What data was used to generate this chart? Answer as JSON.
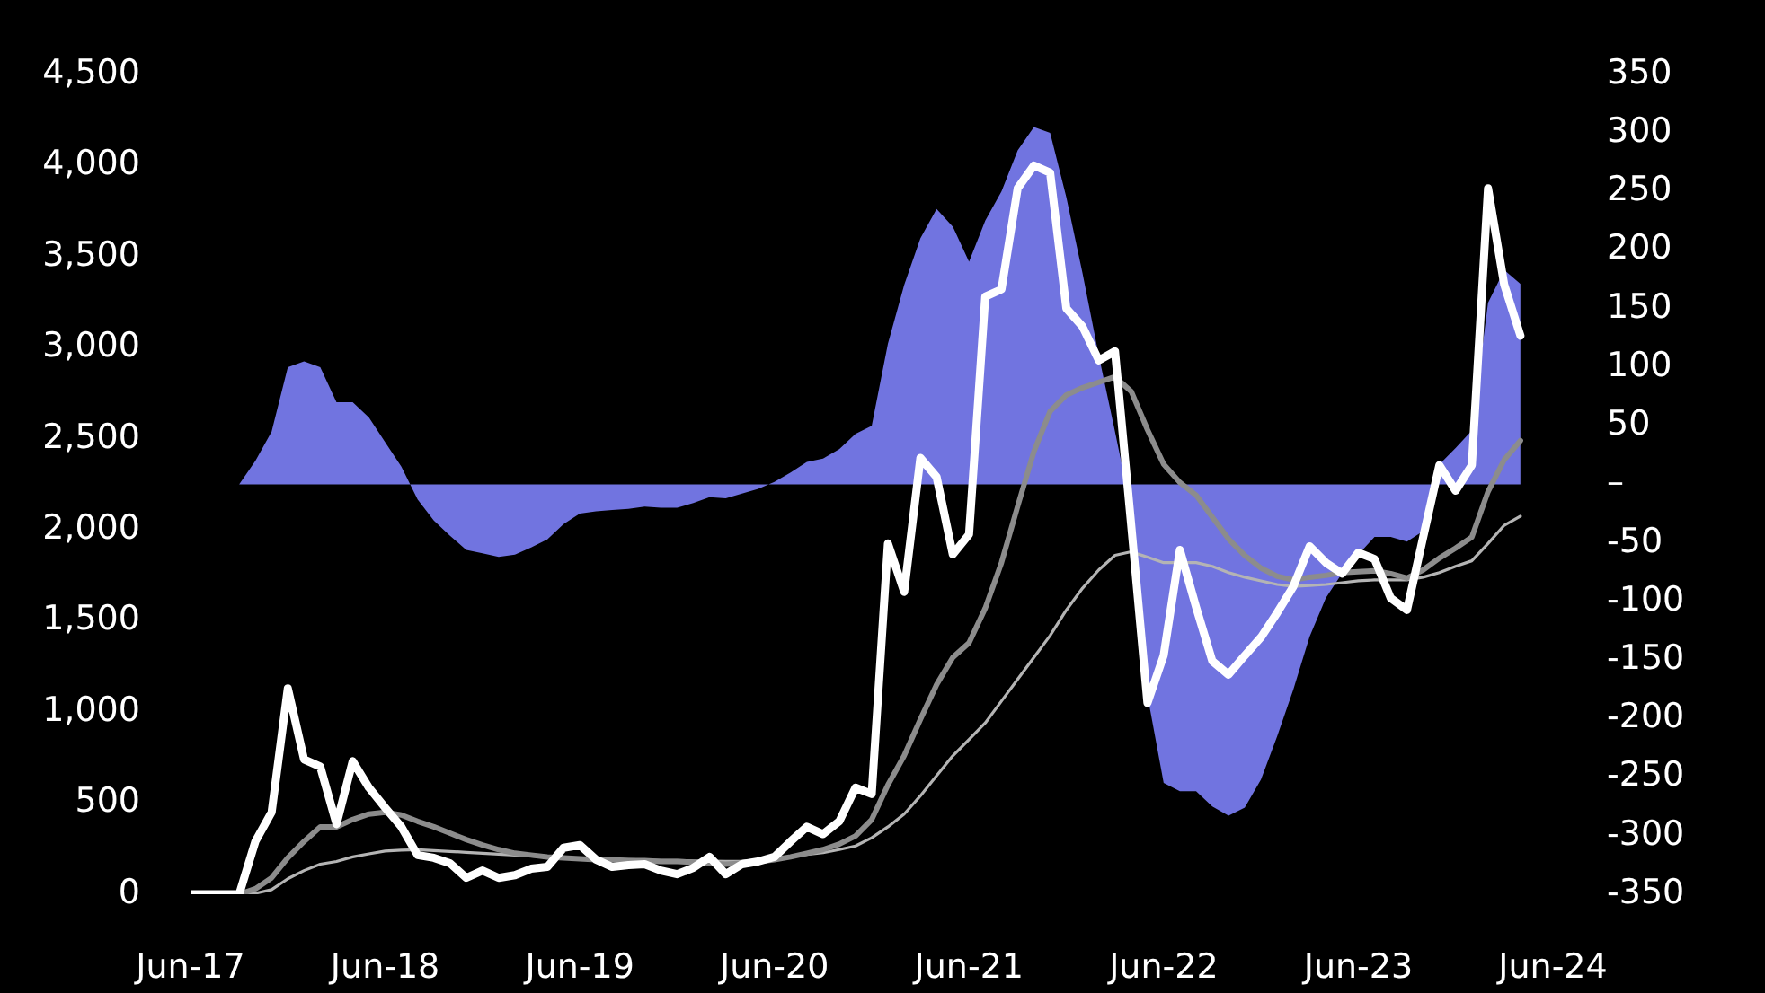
{
  "chart_data": {
    "type": "line",
    "x": [
      "2017-06",
      "2017-07",
      "2017-08",
      "2017-09",
      "2017-10",
      "2017-11",
      "2017-12",
      "2018-01",
      "2018-02",
      "2018-03",
      "2018-04",
      "2018-05",
      "2018-06",
      "2018-07",
      "2018-08",
      "2018-09",
      "2018-10",
      "2018-11",
      "2018-12",
      "2019-01",
      "2019-02",
      "2019-03",
      "2019-04",
      "2019-05",
      "2019-06",
      "2019-07",
      "2019-08",
      "2019-09",
      "2019-10",
      "2019-11",
      "2019-12",
      "2020-01",
      "2020-02",
      "2020-03",
      "2020-04",
      "2020-05",
      "2020-06",
      "2020-07",
      "2020-08",
      "2020-09",
      "2020-10",
      "2020-11",
      "2020-12",
      "2021-01",
      "2021-02",
      "2021-03",
      "2021-04",
      "2021-05",
      "2021-06",
      "2021-07",
      "2021-08",
      "2021-09",
      "2021-10",
      "2021-11",
      "2021-12",
      "2022-01",
      "2022-02",
      "2022-03",
      "2022-04",
      "2022-05",
      "2022-06",
      "2022-07",
      "2022-08",
      "2022-09",
      "2022-10",
      "2022-11",
      "2022-12",
      "2023-01",
      "2023-02",
      "2023-03",
      "2023-04",
      "2023-05",
      "2023-06",
      "2023-07",
      "2023-08",
      "2023-09",
      "2023-10",
      "2023-11",
      "2023-12",
      "2024-01",
      "2024-02",
      "2024-03",
      "2024-04"
    ],
    "series": [
      {
        "type": "area",
        "axis": "y2",
        "color": "#7174e0",
        "values": [
          0,
          0,
          0,
          0,
          20,
          45,
          100,
          105,
          100,
          70,
          70,
          57,
          36,
          15,
          -13,
          -31,
          -44,
          -56,
          -59,
          -62,
          -60,
          -54,
          -47,
          -34,
          -25,
          -23,
          -22,
          -21,
          -19,
          -20,
          -20,
          -16,
          -11,
          -12,
          -8,
          -4,
          2,
          10,
          19,
          22,
          30,
          43,
          50,
          120,
          170,
          210,
          235,
          220,
          190,
          225,
          250,
          285,
          305,
          300,
          245,
          180,
          110,
          45,
          -22,
          -180,
          -255,
          -262,
          -262,
          -275,
          -283,
          -276,
          -252,
          -215,
          -175,
          -130,
          -97,
          -76,
          -60,
          -45,
          -45,
          -49,
          -40,
          17,
          31,
          46,
          155,
          183,
          171
        ]
      },
      {
        "type": "line",
        "color": "#b4b4b4",
        "values": [
          0,
          0,
          0,
          0,
          5,
          25,
          85,
          130,
          165,
          180,
          205,
          222,
          237,
          242,
          245,
          240,
          235,
          230,
          225,
          220,
          215,
          210,
          205,
          200,
          198,
          195,
          192,
          190,
          188,
          186,
          185,
          183,
          182,
          180,
          182,
          188,
          195,
          205,
          218,
          228,
          245,
          265,
          310,
          370,
          440,
          540,
          650,
          760,
          850,
          940,
          1060,
          1180,
          1300,
          1420,
          1560,
          1680,
          1780,
          1860,
          1880,
          1850,
          1820,
          1820,
          1820,
          1800,
          1765,
          1740,
          1720,
          1700,
          1690,
          1695,
          1700,
          1710,
          1720,
          1725,
          1725,
          1725,
          1740,
          1765,
          1800,
          1830,
          1925,
          2025,
          2075
        ]
      },
      {
        "type": "line",
        "color": "#8c8c8c",
        "values": [
          0,
          0,
          0,
          0,
          30,
          90,
          200,
          290,
          370,
          370,
          410,
          440,
          450,
          435,
          400,
          370,
          335,
          300,
          270,
          245,
          225,
          215,
          205,
          200,
          195,
          190,
          190,
          185,
          185,
          180,
          180,
          175,
          170,
          165,
          170,
          178,
          190,
          205,
          225,
          245,
          275,
          320,
          410,
          600,
          760,
          960,
          1150,
          1300,
          1380,
          1570,
          1820,
          2130,
          2430,
          2650,
          2740,
          2780,
          2810,
          2840,
          2760,
          2550,
          2360,
          2260,
          2190,
          2070,
          1950,
          1860,
          1790,
          1745,
          1725,
          1740,
          1750,
          1765,
          1770,
          1775,
          1760,
          1735,
          1780,
          1845,
          1900,
          1960,
          2210,
          2385,
          2490
        ]
      },
      {
        "type": "line",
        "color": "#ffffff",
        "values": [
          0,
          0,
          0,
          0,
          290,
          450,
          1130,
          740,
          700,
          385,
          730,
          585,
          475,
          370,
          215,
          200,
          170,
          90,
          130,
          90,
          105,
          140,
          150,
          255,
          270,
          190,
          150,
          160,
          165,
          130,
          110,
          145,
          205,
          110,
          165,
          180,
          205,
          290,
          370,
          330,
          400,
          585,
          550,
          1925,
          1660,
          2395,
          2290,
          1865,
          1975,
          3280,
          3320,
          3875,
          4000,
          3960,
          3215,
          3115,
          2930,
          2980,
          2025,
          1050,
          1310,
          1890,
          1575,
          1280,
          1205,
          1310,
          1410,
          1545,
          1690,
          1910,
          1820,
          1760,
          1875,
          1840,
          1625,
          1560,
          1960,
          2355,
          2215,
          2355,
          3875,
          3345,
          3065
        ]
      }
    ],
    "xlim": [
      "2017-06",
      "2024-06"
    ],
    "xticks": [
      {
        "value": "2017-06",
        "label": "Jun-17"
      },
      {
        "value": "2018-06",
        "label": "Jun-18"
      },
      {
        "value": "2019-06",
        "label": "Jun-19"
      },
      {
        "value": "2020-06",
        "label": "Jun-20"
      },
      {
        "value": "2021-06",
        "label": "Jun-21"
      },
      {
        "value": "2022-06",
        "label": "Jun-22"
      },
      {
        "value": "2023-06",
        "label": "Jun-23"
      },
      {
        "value": "2024-06",
        "label": "Jun-24"
      }
    ],
    "ylim": [
      0,
      4500
    ],
    "yticks": [
      0,
      500,
      {
        "value": 1000,
        "label": "1,000"
      },
      {
        "value": 1500,
        "label": "1,500"
      },
      {
        "value": 2000,
        "label": "2,000"
      },
      {
        "value": 2500,
        "label": "2,500"
      },
      {
        "value": 3000,
        "label": "3,000"
      },
      {
        "value": 3500,
        "label": "3,500"
      },
      {
        "value": 4000,
        "label": "4,000"
      },
      {
        "value": 4500,
        "label": "4,500"
      }
    ],
    "y2lim": [
      -350,
      350
    ],
    "y2ticks": [
      -350,
      -300,
      -250,
      -200,
      -150,
      -100,
      -50,
      {
        "value": 0,
        "label": "–"
      },
      50,
      100,
      150,
      200,
      250,
      300,
      350
    ],
    "grid": false,
    "legend": false,
    "marker": "none",
    "line_style": "solid"
  }
}
